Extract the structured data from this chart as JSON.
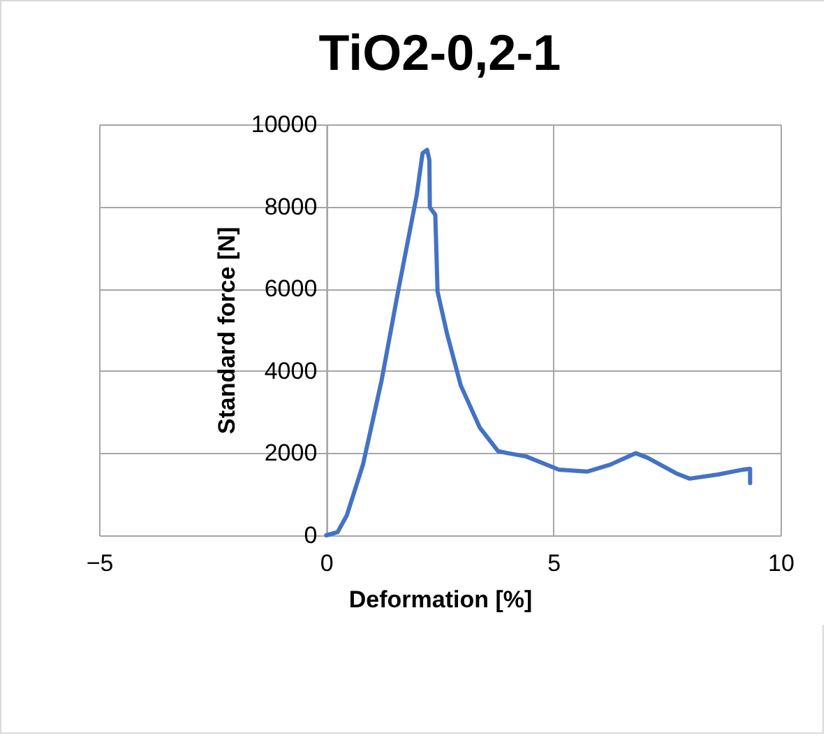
{
  "chart_data": {
    "type": "line",
    "title": "TiO2-0,2-1",
    "xlabel": "Deformation [%]",
    "ylabel": "Standard force [N]",
    "x": [
      0,
      0.25,
      0.45,
      0.81,
      1.22,
      1.58,
      1.99,
      2.12,
      2.22,
      2.27,
      2.28,
      2.4,
      2.45,
      2.66,
      2.96,
      3.38,
      3.78,
      3.99,
      4.4,
      5.12,
      5.74,
      6.25,
      6.81,
      7.07,
      7.7,
      8.0,
      8.62,
      9.18,
      9.33,
      9.33
    ],
    "series": [
      {
        "color": "#4472c4",
        "values": [
          0,
          80,
          480,
          1730,
          3780,
          5930,
          8270,
          9300,
          9380,
          9130,
          7980,
          7800,
          5930,
          4900,
          3650,
          2620,
          2050,
          2000,
          1920,
          1600,
          1550,
          1720,
          2000,
          1890,
          1510,
          1380,
          1480,
          1600,
          1620,
          1270
        ]
      }
    ],
    "xlim": [
      -5,
      10
    ],
    "xticks": [
      -5,
      0,
      5,
      10
    ],
    "ylim": [
      0,
      10000
    ],
    "yticks": [
      0,
      2000,
      4000,
      6000,
      8000,
      10000
    ],
    "grid": true,
    "marker": "none",
    "line_style": "solid"
  }
}
